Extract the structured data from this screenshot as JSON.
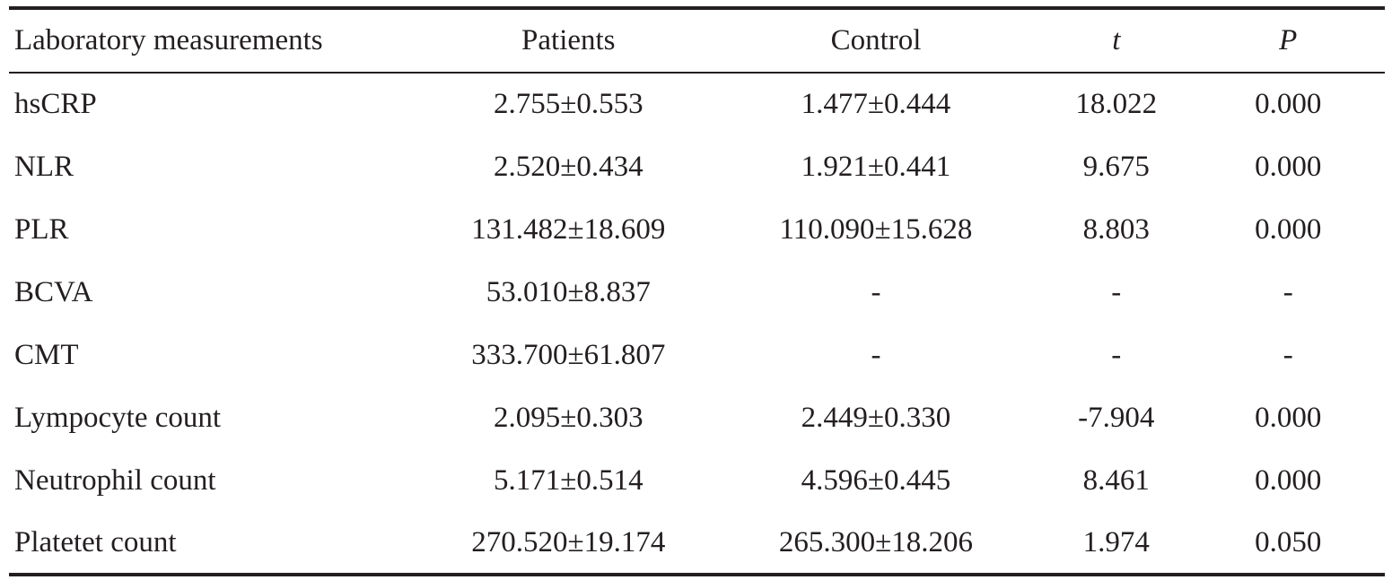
{
  "table": {
    "headers": [
      "Laboratory measurements",
      "Patients",
      "Control",
      "t",
      "P"
    ],
    "rows": [
      [
        "hsCRP",
        "2.755±0.553",
        "1.477±0.444",
        "18.022",
        "0.000"
      ],
      [
        "NLR",
        "2.520±0.434",
        "1.921±0.441",
        "9.675",
        "0.000"
      ],
      [
        "PLR",
        "131.482±18.609",
        "110.090±15.628",
        "8.803",
        "0.000"
      ],
      [
        "BCVA",
        "53.010±8.837",
        "-",
        "-",
        "-"
      ],
      [
        "CMT",
        "333.700±61.807",
        "-",
        "-",
        "-"
      ],
      [
        "Lympocyte count",
        "2.095±0.303",
        "2.449±0.330",
        "-7.904",
        "0.000"
      ],
      [
        "Neutrophil count",
        "5.171±0.514",
        "4.596±0.445",
        "8.461",
        "0.000"
      ],
      [
        "Platetet count",
        "270.520±19.174",
        "265.300±18.206",
        "1.974",
        "0.050"
      ]
    ]
  }
}
